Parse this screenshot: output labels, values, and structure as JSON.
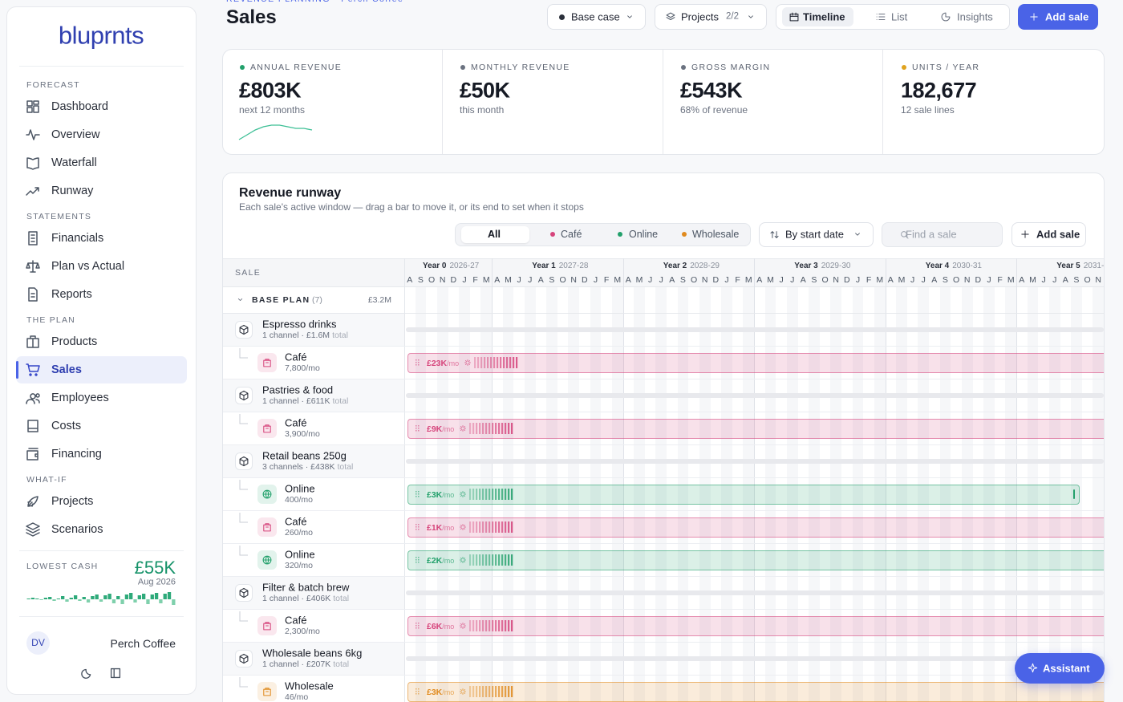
{
  "sidebar": {
    "logo": "bluprnts",
    "sections": [
      {
        "label": "FORECAST",
        "items": [
          "Dashboard",
          "Overview",
          "Waterfall",
          "Runway"
        ]
      },
      {
        "label": "STATEMENTS",
        "items": [
          "Financials",
          "Plan vs Actual",
          "Reports"
        ]
      },
      {
        "label": "THE PLAN",
        "items": [
          "Products",
          "Sales",
          "Employees",
          "Costs",
          "Financing"
        ]
      },
      {
        "label": "WHAT-IF",
        "items": [
          "Projects",
          "Scenarios"
        ]
      }
    ],
    "active": "Sales",
    "lowest_cash": {
      "label": "LOWEST CASH",
      "value": "£55K",
      "date": "Aug 2026",
      "trend": [
        1,
        2,
        1,
        -1,
        2,
        3,
        -2,
        1,
        4,
        -3,
        2,
        5,
        -2,
        3,
        -4,
        4,
        6,
        -3,
        5,
        7,
        -5,
        4,
        -6,
        6,
        8,
        -4,
        5,
        7,
        -6,
        6,
        8,
        -5,
        7,
        9,
        -7
      ]
    },
    "user": {
      "initials": "DV",
      "name": "Perch Coffee"
    }
  },
  "header": {
    "breadcrumb": "REVENUE PLANNING · Perch Coffee",
    "title": "Sales",
    "scenario": "Base case",
    "projects": "Projects",
    "projects_count": "2/2",
    "views": [
      "Timeline",
      "List",
      "Insights"
    ],
    "active_view": "Timeline",
    "add_button": "Add sale"
  },
  "kpis": [
    {
      "label": "ANNUAL REVENUE",
      "value": "£803K",
      "sub": "next 12 months",
      "dot": "#22a06b",
      "trend": [
        1,
        4,
        7,
        9,
        10,
        10,
        9,
        8,
        8,
        7
      ]
    },
    {
      "label": "MONTHLY REVENUE",
      "value": "£50K",
      "sub": "this month",
      "dot": "#6b7280"
    },
    {
      "label": "GROSS MARGIN",
      "value": "£543K",
      "sub": "68% of revenue",
      "dot": "#6b7280"
    },
    {
      "label": "UNITS / YEAR",
      "value": "182,677",
      "sub": "12 sale lines",
      "dot": "#e0a31e"
    }
  ],
  "runway": {
    "title": "Revenue runway",
    "subtitle": "Each sale's active window — drag a bar to move it, or its end to set when it stops",
    "filters": [
      {
        "label": "All"
      },
      {
        "label": "Café",
        "color": "#d6457c"
      },
      {
        "label": "Online",
        "color": "#22a06b"
      },
      {
        "label": "Wholesale",
        "color": "#e08a1e"
      }
    ],
    "active_filter": "All",
    "sort": "By start date",
    "search_placeholder": "Find a sale",
    "add_button": "Add sale",
    "column": "SALE",
    "years": [
      {
        "label": "Year 0",
        "range": "2026-27",
        "months": [
          "A",
          "S",
          "O",
          "N",
          "D",
          "J",
          "F",
          "M"
        ]
      },
      {
        "label": "Year 1",
        "range": "2027-28",
        "months": [
          "A",
          "M",
          "J",
          "J",
          "A",
          "S",
          "O",
          "N",
          "D",
          "J",
          "F",
          "M"
        ]
      },
      {
        "label": "Year 2",
        "range": "2028-29",
        "months": [
          "A",
          "M",
          "J",
          "J",
          "A",
          "S",
          "O",
          "N",
          "D",
          "J",
          "F",
          "M"
        ]
      },
      {
        "label": "Year 3",
        "range": "2029-30",
        "months": [
          "A",
          "M",
          "J",
          "J",
          "A",
          "S",
          "O",
          "N",
          "D",
          "J",
          "F",
          "M"
        ]
      },
      {
        "label": "Year 4",
        "range": "2030-31",
        "months": [
          "A",
          "M",
          "J",
          "J",
          "A",
          "S",
          "O",
          "N",
          "D",
          "J",
          "F",
          "M"
        ]
      },
      {
        "label": "Year 5",
        "range": "2031-",
        "months": [
          "A",
          "M",
          "J",
          "J",
          "A",
          "S",
          "O",
          "N"
        ]
      }
    ],
    "group": {
      "name": "BASE PLAN",
      "count": "(7)",
      "total": "£3.2M"
    },
    "rows": [
      {
        "kind": "product",
        "name": "Espresso drinks",
        "sub": "1 channel · £1.6M",
        "sub_suffix": "total"
      },
      {
        "kind": "channel",
        "name": "Café",
        "qty": "7,800/mo",
        "rate": "£23K",
        "rate_unit": "/mo",
        "color": "#d6457c",
        "open_ended": true
      },
      {
        "kind": "product",
        "name": "Pastries & food",
        "sub": "1 channel · £611K",
        "sub_suffix": "total"
      },
      {
        "kind": "channel",
        "name": "Café",
        "qty": "3,900/mo",
        "rate": "£9K",
        "rate_unit": "/mo",
        "color": "#d6457c",
        "open_ended": true
      },
      {
        "kind": "product",
        "name": "Retail beans 250g",
        "sub": "3 channels · £438K",
        "sub_suffix": "total"
      },
      {
        "kind": "channel",
        "name": "Online",
        "qty": "400/mo",
        "rate": "£3K",
        "rate_unit": "/mo",
        "color": "#22a06b",
        "open_ended": false
      },
      {
        "kind": "channel",
        "name": "Café",
        "qty": "260/mo",
        "rate": "£1K",
        "rate_unit": "/mo",
        "color": "#d6457c",
        "open_ended": true
      },
      {
        "kind": "channel",
        "name": "Online",
        "qty": "320/mo",
        "rate": "£2K",
        "rate_unit": "/mo",
        "color": "#22a06b",
        "open_ended": true
      },
      {
        "kind": "product",
        "name": "Filter & batch brew",
        "sub": "1 channel · £406K",
        "sub_suffix": "total"
      },
      {
        "kind": "channel",
        "name": "Café",
        "qty": "2,300/mo",
        "rate": "£6K",
        "rate_unit": "/mo",
        "color": "#d6457c",
        "open_ended": true
      },
      {
        "kind": "product",
        "name": "Wholesale beans 6kg",
        "sub": "1 channel · £207K",
        "sub_suffix": "total"
      },
      {
        "kind": "channel",
        "name": "Wholesale",
        "qty": "46/mo",
        "rate": "£3K",
        "rate_unit": "/mo",
        "color": "#e08a1e",
        "open_ended": true
      }
    ]
  },
  "assistant": "Assistant"
}
